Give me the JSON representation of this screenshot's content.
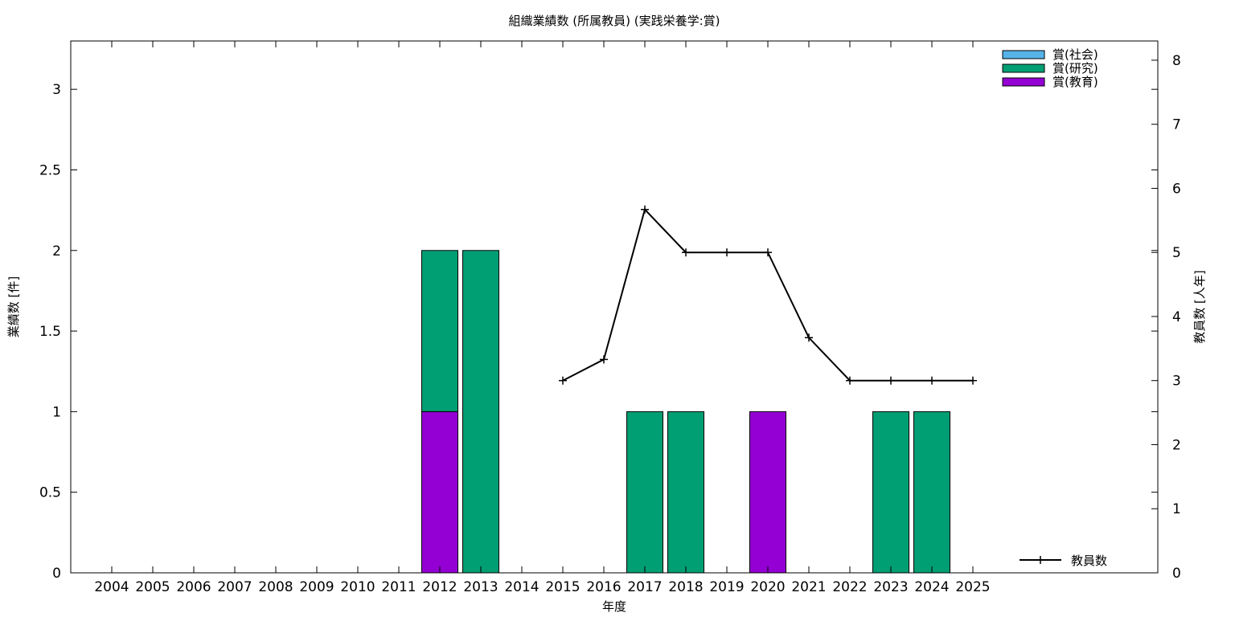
{
  "chart_data": {
    "type": "bar",
    "title": "組織業績数 (所属教員) (実践栄養学:賞)",
    "xlabel": "年度",
    "ylabel": "業績数 [件]",
    "y2label": "教員数 [人年]",
    "ylim": [
      0,
      3.3
    ],
    "y2lim": [
      0,
      8.3
    ],
    "yticks": [
      0,
      0.5,
      1,
      1.5,
      2,
      2.5,
      3
    ],
    "yticklabels": [
      "0",
      "0.5",
      "1",
      "1.5",
      "2",
      "2.5",
      "3"
    ],
    "y2ticks": [
      0,
      1,
      2,
      3,
      4,
      5,
      6,
      7,
      8
    ],
    "y2ticklabels": [
      "0",
      "1",
      "2",
      "3",
      "4",
      "5",
      "6",
      "7",
      "8"
    ],
    "grid": false,
    "legend_position": "top-right",
    "categories": [
      "2004",
      "2005",
      "2006",
      "2007",
      "2008",
      "2009",
      "2010",
      "2011",
      "2012",
      "2013",
      "2014",
      "2015",
      "2016",
      "2017",
      "2018",
      "2019",
      "2020",
      "2021",
      "2022",
      "2023",
      "2024",
      "2025"
    ],
    "stacked_series": [
      {
        "name": "賞(教育)",
        "color": "#9400d3",
        "values": [
          0,
          0,
          0,
          0,
          0,
          0,
          0,
          0,
          1,
          0,
          0,
          0,
          0,
          0,
          0,
          0,
          1,
          0,
          0,
          0,
          0,
          0
        ]
      },
      {
        "name": "賞(研究)",
        "color": "#009e73",
        "values": [
          0,
          0,
          0,
          0,
          0,
          0,
          0,
          0,
          1,
          2,
          0,
          0,
          0,
          1,
          1,
          0,
          0,
          0,
          0,
          1,
          1,
          0
        ]
      },
      {
        "name": "賞(社会)",
        "color": "#56b4e9",
        "values": [
          0,
          0,
          0,
          0,
          0,
          0,
          0,
          0,
          0,
          0,
          0,
          0,
          0,
          0,
          0,
          0,
          0,
          0,
          0,
          0,
          0,
          0
        ]
      }
    ],
    "legend_order": [
      "賞(社会)",
      "賞(研究)",
      "賞(教育)"
    ],
    "line_series": {
      "name": "教員数",
      "color": "#000000",
      "axis": "right",
      "legend_position": "bottom-right",
      "x": [
        "2015",
        "2016",
        "2017",
        "2018",
        "2019",
        "2020",
        "2021",
        "2022",
        "2023",
        "2024",
        "2025"
      ],
      "values": [
        3,
        3.33,
        5.67,
        5,
        5,
        5,
        3.67,
        3,
        3,
        3,
        3
      ]
    }
  }
}
